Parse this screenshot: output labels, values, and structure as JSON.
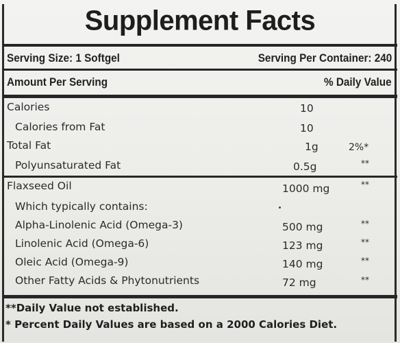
{
  "title": "Supplement Facts",
  "serving": {
    "size": "Serving Size: 1 Softgel",
    "per_container": "Serving Per Container: 240"
  },
  "header": {
    "amount_per_serving": "Amount Per Serving",
    "daily_value": "% Daily Value"
  },
  "section1": [
    {
      "name": "Calories",
      "amount": "10",
      "dv": ""
    },
    {
      "name": "Calories from Fat",
      "amount": "10",
      "dv": ""
    },
    {
      "name": "Total Fat",
      "amount": "1g",
      "dv": "2%*"
    },
    {
      "name": "Polyunsaturated Fat",
      "amount": "0.5g",
      "dv": "**"
    }
  ],
  "section2": [
    {
      "name": "Flaxseed Oil",
      "amount": "1000 mg",
      "dv": "**"
    },
    {
      "name": "Which typically contains:",
      "amount": "",
      "dv": ""
    },
    {
      "name": "Alpha-Linolenic Acid (Omega-3)",
      "amount": "500 mg",
      "dv": "**"
    },
    {
      "name": "Linolenic Acid (Omega-6)",
      "amount": "123 mg",
      "dv": "**"
    },
    {
      "name": "Oleic Acid (Omega-9)",
      "amount": "140 mg",
      "dv": "**"
    },
    {
      "name": "Other Fatty Acids & Phytonutrients",
      "amount": "72 mg",
      "dv": "**"
    }
  ],
  "footnotes": [
    "**Daily Value not established.",
    "* Percent Daily Values are based on a 2000 Calories Diet."
  ]
}
